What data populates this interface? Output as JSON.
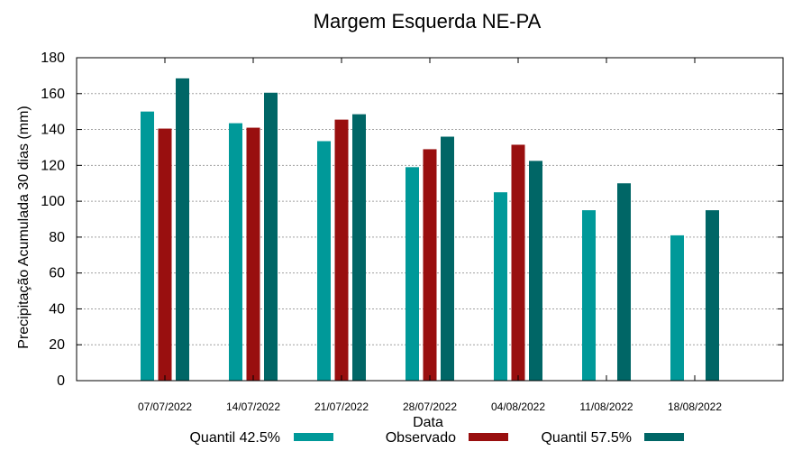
{
  "chart_data": {
    "type": "bar",
    "title": "Margem Esquerda NE-PA",
    "xlabel": "Data",
    "ylabel": "Precipitação Acumulada 30 dias (mm)",
    "ylim": [
      0,
      180
    ],
    "yticks": [
      0,
      20,
      40,
      60,
      80,
      100,
      120,
      140,
      160,
      180
    ],
    "grid": true,
    "legend_position": "bottom",
    "categories": [
      "07/07/2022",
      "14/07/2022",
      "21/07/2022",
      "28/07/2022",
      "04/08/2022",
      "11/08/2022",
      "18/08/2022"
    ],
    "series": [
      {
        "name": "Quantil 42.5%",
        "color": "#009999",
        "values": [
          150,
          143.5,
          133.5,
          119,
          105,
          95,
          81
        ]
      },
      {
        "name": "Observado",
        "color": "#990f0f",
        "values": [
          140.5,
          141,
          145.5,
          129,
          131.5,
          null,
          null
        ]
      },
      {
        "name": "Quantil 57.5%",
        "color": "#006666",
        "values": [
          168.5,
          160.5,
          148.5,
          136,
          122.5,
          110,
          95
        ]
      }
    ]
  }
}
